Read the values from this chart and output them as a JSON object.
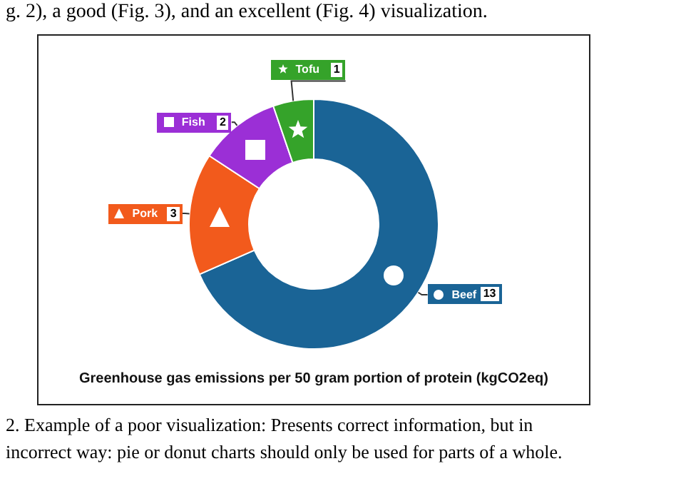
{
  "chart_data": {
    "type": "donut",
    "title": "Greenhouse gas emissions per 50 gram portion of protein (kgCO2eq)",
    "categories": [
      "Beef",
      "Pork",
      "Fish",
      "Tofu"
    ],
    "values": [
      13,
      3,
      2,
      1
    ],
    "colors": [
      "#1a6496",
      "#f25a1c",
      "#9b2fd6",
      "#35a32a"
    ],
    "data_labels": true,
    "legend": false,
    "annotations": [
      "g. 2), a good (Fig. 3), and an excellent (Fig. 4) visualization.",
      "2.  Example of a poor visualization: Presents correct information, but in",
      "incorrect way: pie or donut charts should only be used for parts of a whole."
    ]
  }
}
